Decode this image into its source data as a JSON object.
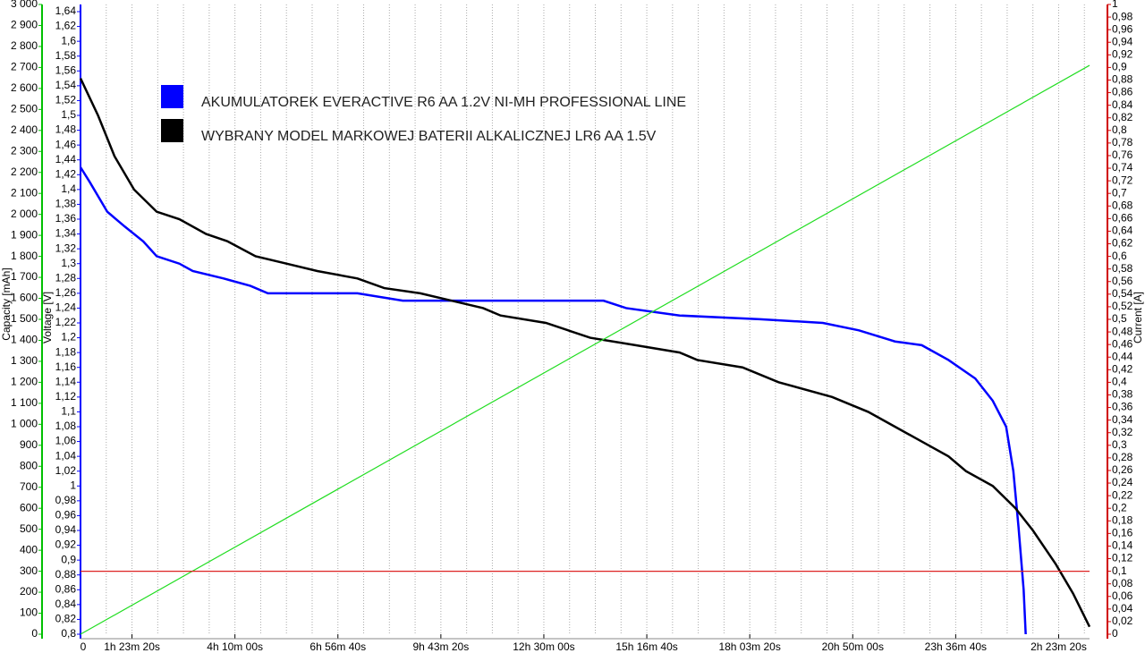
{
  "chart_data": {
    "type": "line",
    "legend": "upper left",
    "x": null,
    "xlim": [
      0,
      98000
    ],
    "xticks": [
      0,
      {
        "value": 5000,
        "label": "1h 23m 20s"
      },
      {
        "value": 15000,
        "label": "4h 10m 00s"
      },
      {
        "value": 25000,
        "label": "6h 56m 40s"
      },
      {
        "value": 35000,
        "label": "9h 43m 20s"
      },
      {
        "value": 45000,
        "label": "12h 30m 00s"
      },
      {
        "value": 55000,
        "label": "15h 16m 40s"
      },
      {
        "value": 65000,
        "label": "18h 03m 20s"
      },
      {
        "value": 75000,
        "label": "20h 50m 00s"
      },
      {
        "value": 85000,
        "label": "23h 36m 40s"
      },
      {
        "value": 95000,
        "label": "2h 23m 20s"
      }
    ],
    "xgrid": [
      2500,
      5000,
      7500,
      10000,
      12500,
      15000,
      17500,
      20000,
      22500,
      25000,
      27500,
      30000,
      32500,
      35000,
      37500,
      40000,
      42500,
      45000,
      47500,
      50000,
      52500,
      55000,
      57500,
      60000,
      62500,
      65000,
      67500,
      70000,
      72500,
      75000,
      77500,
      80000,
      82500,
      85000,
      87500,
      90000,
      92500,
      95000,
      97500
    ],
    "ylabel": "Voltage [V]",
    "ycolor": "#0000ff",
    "ylim": [
      0.8,
      1.64
    ],
    "yticks": [
      {
        "value": 0.8,
        "label": "0,8"
      },
      {
        "value": 0.82,
        "label": "0,82"
      },
      {
        "value": 0.84,
        "label": "0,84"
      },
      {
        "value": 0.86,
        "label": "0,86"
      },
      {
        "value": 0.88,
        "label": "0,88"
      },
      {
        "value": 0.9,
        "label": "0,9"
      },
      {
        "value": 0.92,
        "label": "0,92"
      },
      {
        "value": 0.94,
        "label": "0,94"
      },
      {
        "value": 0.96,
        "label": "0,96"
      },
      {
        "value": 0.98,
        "label": "0,98"
      },
      1,
      {
        "value": 1.02,
        "label": "1,02"
      },
      {
        "value": 1.04,
        "label": "1,04"
      },
      {
        "value": 1.06,
        "label": "1,06"
      },
      {
        "value": 1.08,
        "label": "1,08"
      },
      {
        "value": 1.1,
        "label": "1,1"
      },
      {
        "value": 1.12,
        "label": "1,12"
      },
      {
        "value": 1.14,
        "label": "1,14"
      },
      {
        "value": 1.16,
        "label": "1,16"
      },
      {
        "value": 1.18,
        "label": "1,18"
      },
      {
        "value": 1.2,
        "label": "1,2"
      },
      {
        "value": 1.22,
        "label": "1,22"
      },
      {
        "value": 1.24,
        "label": "1,24"
      },
      {
        "value": 1.26,
        "label": "1,26"
      },
      {
        "value": 1.28,
        "label": "1,28"
      },
      {
        "value": 1.3,
        "label": "1,3"
      },
      {
        "value": 1.32,
        "label": "1,32"
      },
      {
        "value": 1.34,
        "label": "1,34"
      },
      {
        "value": 1.36,
        "label": "1,36"
      },
      {
        "value": 1.38,
        "label": "1,38"
      },
      {
        "value": 1.4,
        "label": "1,4"
      },
      {
        "value": 1.42,
        "label": "1,42"
      },
      {
        "value": 1.44,
        "label": "1,44"
      },
      {
        "value": 1.46,
        "label": "1,46"
      },
      {
        "value": 1.48,
        "label": "1,48"
      },
      {
        "value": 1.5,
        "label": "1,5"
      },
      {
        "value": 1.52,
        "label": "1,52"
      },
      {
        "value": 1.54,
        "label": "1,54"
      },
      {
        "value": 1.56,
        "label": "1,56"
      },
      {
        "value": 1.58,
        "label": "1,58"
      },
      {
        "value": 1.6,
        "label": "1,6"
      },
      {
        "value": 1.62,
        "label": "1,62"
      },
      {
        "value": 1.64,
        "label": "1,64"
      }
    ],
    "y2label": "Current [A]",
    "y2color": "#d00000",
    "y2lim": [
      0,
      1
    ],
    "y2ticks": [
      0,
      {
        "value": 0.02,
        "label": "0,02"
      },
      {
        "value": 0.04,
        "label": "0,04"
      },
      {
        "value": 0.06,
        "label": "0,06"
      },
      {
        "value": 0.08,
        "label": "0,08"
      },
      {
        "value": 0.1,
        "label": "0,1"
      },
      {
        "value": 0.12,
        "label": "0,12"
      },
      {
        "value": 0.14,
        "label": "0,14"
      },
      {
        "value": 0.16,
        "label": "0,16"
      },
      {
        "value": 0.18,
        "label": "0,18"
      },
      {
        "value": 0.2,
        "label": "0,2"
      },
      {
        "value": 0.22,
        "label": "0,22"
      },
      {
        "value": 0.24,
        "label": "0,24"
      },
      {
        "value": 0.26,
        "label": "0,26"
      },
      {
        "value": 0.28,
        "label": "0,28"
      },
      {
        "value": 0.3,
        "label": "0,3"
      },
      {
        "value": 0.32,
        "label": "0,32"
      },
      {
        "value": 0.34,
        "label": "0,34"
      },
      {
        "value": 0.36,
        "label": "0,36"
      },
      {
        "value": 0.38,
        "label": "0,38"
      },
      {
        "value": 0.4,
        "label": "0,4"
      },
      {
        "value": 0.42,
        "label": "0,42"
      },
      {
        "value": 0.44,
        "label": "0,44"
      },
      {
        "value": 0.46,
        "label": "0,46"
      },
      {
        "value": 0.48,
        "label": "0,48"
      },
      {
        "value": 0.5,
        "label": "0,5"
      },
      {
        "value": 0.52,
        "label": "0,52"
      },
      {
        "value": 0.54,
        "label": "0,54"
      },
      {
        "value": 0.56,
        "label": "0,56"
      },
      {
        "value": 0.58,
        "label": "0,58"
      },
      {
        "value": 0.6,
        "label": "0,6"
      },
      {
        "value": 0.62,
        "label": "0,62"
      },
      {
        "value": 0.64,
        "label": "0,64"
      },
      {
        "value": 0.66,
        "label": "0,66"
      },
      {
        "value": 0.68,
        "label": "0,68"
      },
      {
        "value": 0.7,
        "label": "0,7"
      },
      {
        "value": 0.72,
        "label": "0,72"
      },
      {
        "value": 0.74,
        "label": "0,74"
      },
      {
        "value": 0.76,
        "label": "0,76"
      },
      {
        "value": 0.78,
        "label": "0,78"
      },
      {
        "value": 0.8,
        "label": "0,8"
      },
      {
        "value": 0.82,
        "label": "0,82"
      },
      {
        "value": 0.84,
        "label": "0,84"
      },
      {
        "value": 0.86,
        "label": "0,86"
      },
      {
        "value": 0.88,
        "label": "0,88"
      },
      {
        "value": 0.9,
        "label": "0,9"
      },
      {
        "value": 0.92,
        "label": "0,92"
      },
      {
        "value": 0.94,
        "label": "0,94"
      },
      {
        "value": 0.96,
        "label": "0,96"
      },
      {
        "value": 0.98,
        "label": "0,98"
      },
      1
    ],
    "y3label": "Capacity [mAh]",
    "y3color": "#00c000",
    "y3lim": [
      0,
      3000
    ],
    "y3ticks": [
      0,
      100,
      200,
      300,
      400,
      500,
      600,
      700,
      800,
      900,
      {
        "value": 1000,
        "label": "1 000"
      },
      {
        "value": 1100,
        "label": "1 100"
      },
      {
        "value": 1200,
        "label": "1 200"
      },
      {
        "value": 1300,
        "label": "1 300"
      },
      {
        "value": 1400,
        "label": "1 400"
      },
      {
        "value": 1500,
        "label": "1 500"
      },
      {
        "value": 1600,
        "label": "1 600"
      },
      {
        "value": 1700,
        "label": "1 700"
      },
      {
        "value": 1800,
        "label": "1 800"
      },
      {
        "value": 1900,
        "label": "1 900"
      },
      {
        "value": 2000,
        "label": "2 000"
      },
      {
        "value": 2100,
        "label": "2 100"
      },
      {
        "value": 2200,
        "label": "2 200"
      },
      {
        "value": 2300,
        "label": "2 300"
      },
      {
        "value": 2400,
        "label": "2 400"
      },
      {
        "value": 2500,
        "label": "2 500"
      },
      {
        "value": 2600,
        "label": "2 600"
      },
      {
        "value": 2700,
        "label": "2 700"
      },
      {
        "value": 2800,
        "label": "2 800"
      },
      {
        "value": 2900,
        "label": "2 900"
      },
      {
        "value": 3000,
        "label": "3 000"
      }
    ],
    "series": [
      {
        "name": "AKUMULATOREK EVERACTIVE R6 AA 1.2V NI-MH PROFESSIONAL LINE",
        "color": "#0000ff",
        "axis": "y",
        "x": [
          0,
          900,
          2600,
          4300,
          6100,
          7400,
          9600,
          10900,
          13900,
          16500,
          18200,
          26900,
          31300,
          50800,
          53000,
          58200,
          66000,
          72100,
          75600,
          79100,
          81700,
          84300,
          86900,
          88600,
          89900,
          90600,
          91100,
          91600,
          91800
        ],
        "values": [
          1.43,
          1.41,
          1.37,
          1.35,
          1.33,
          1.31,
          1.3,
          1.29,
          1.28,
          1.27,
          1.26,
          1.26,
          1.25,
          1.25,
          1.24,
          1.23,
          1.225,
          1.22,
          1.21,
          1.195,
          1.19,
          1.17,
          1.145,
          1.115,
          1.08,
          1.02,
          0.945,
          0.86,
          0.8
        ]
      },
      {
        "name": "WYBRANY MODEL MARKOWEJ BATERII ALKALICZNEJ LR6 AA 1.5V",
        "color": "#000000",
        "axis": "y",
        "x": [
          0,
          1700,
          3300,
          5200,
          7400,
          9600,
          12200,
          14300,
          17000,
          20000,
          23000,
          26900,
          29500,
          33000,
          39100,
          40800,
          45200,
          49500,
          53900,
          58200,
          59900,
          64300,
          67800,
          73000,
          76500,
          79100,
          81700,
          84300,
          86000,
          88600,
          90800,
          92500,
          94700,
          96400,
          98000
        ],
        "values": [
          1.55,
          1.5,
          1.445,
          1.4,
          1.37,
          1.36,
          1.34,
          1.33,
          1.31,
          1.3,
          1.29,
          1.28,
          1.267,
          1.26,
          1.24,
          1.23,
          1.22,
          1.2,
          1.19,
          1.18,
          1.17,
          1.16,
          1.14,
          1.12,
          1.1,
          1.08,
          1.06,
          1.04,
          1.02,
          1.0,
          0.97,
          0.94,
          0.895,
          0.855,
          0.81
        ]
      },
      {
        "color": "#22dd22",
        "axis": "y3",
        "x": [
          0,
          98000
        ],
        "values": [
          0,
          2710
        ]
      },
      {
        "color": "#dd2222",
        "axis": "y2",
        "x": [
          0,
          98000
        ],
        "values": [
          0.1,
          0.1
        ]
      }
    ]
  }
}
